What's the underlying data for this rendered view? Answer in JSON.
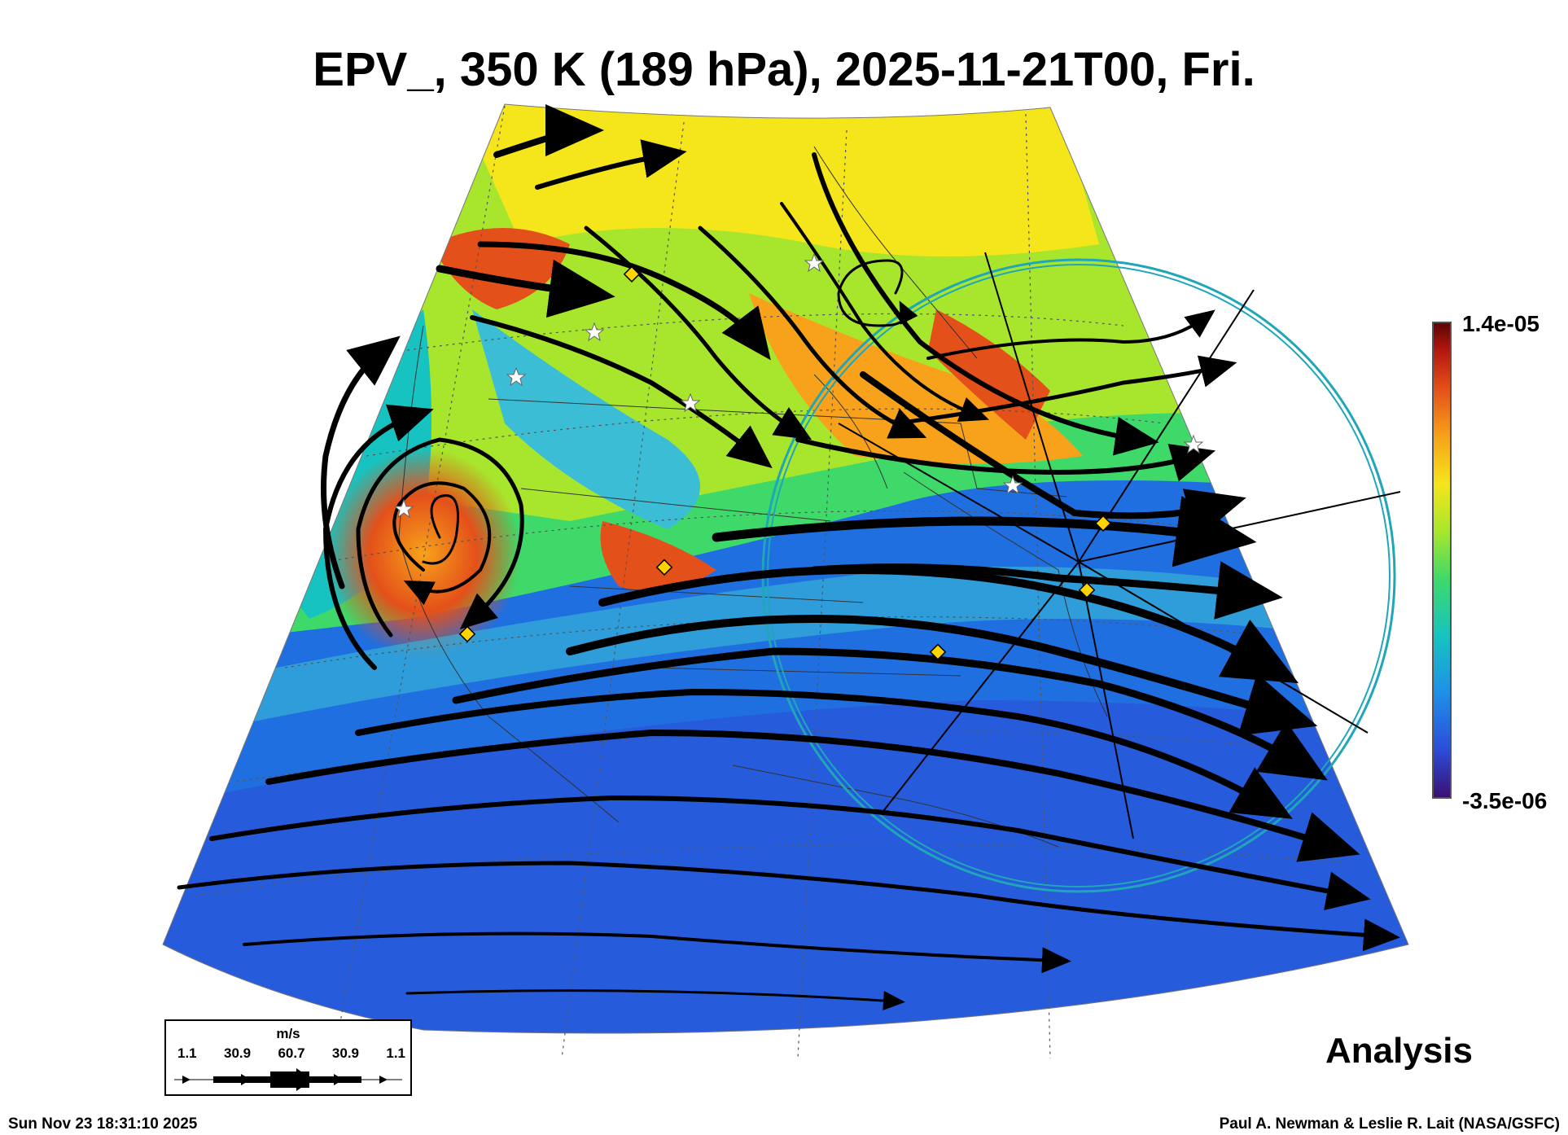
{
  "title": "EPV_, 350 K (189 hPa), 2025-11-21T00, Fri.",
  "colorbar": {
    "max_label": "1.4e-05",
    "min_label": "-3.5e-06",
    "max_value": 1.4e-05,
    "min_value": -3.5e-06,
    "colors": [
      "#3b0f70",
      "#2b4cd8",
      "#1f8fe8",
      "#17c3c0",
      "#3fd96a",
      "#a8e62d",
      "#f5e51b",
      "#f7a21a",
      "#e4501a",
      "#b4180f",
      "#5a0505"
    ]
  },
  "wind_legend": {
    "unit": "m/s",
    "values": [
      "1.1",
      "30.9",
      "60.7",
      "30.9",
      "1.1"
    ]
  },
  "label_analysis": "Analysis",
  "footer": {
    "timestamp": "Sun Nov 23 18:31:10 2025",
    "credit": "Paul A. Newman & Leslie R. Lait (NASA/GSFC)"
  }
}
